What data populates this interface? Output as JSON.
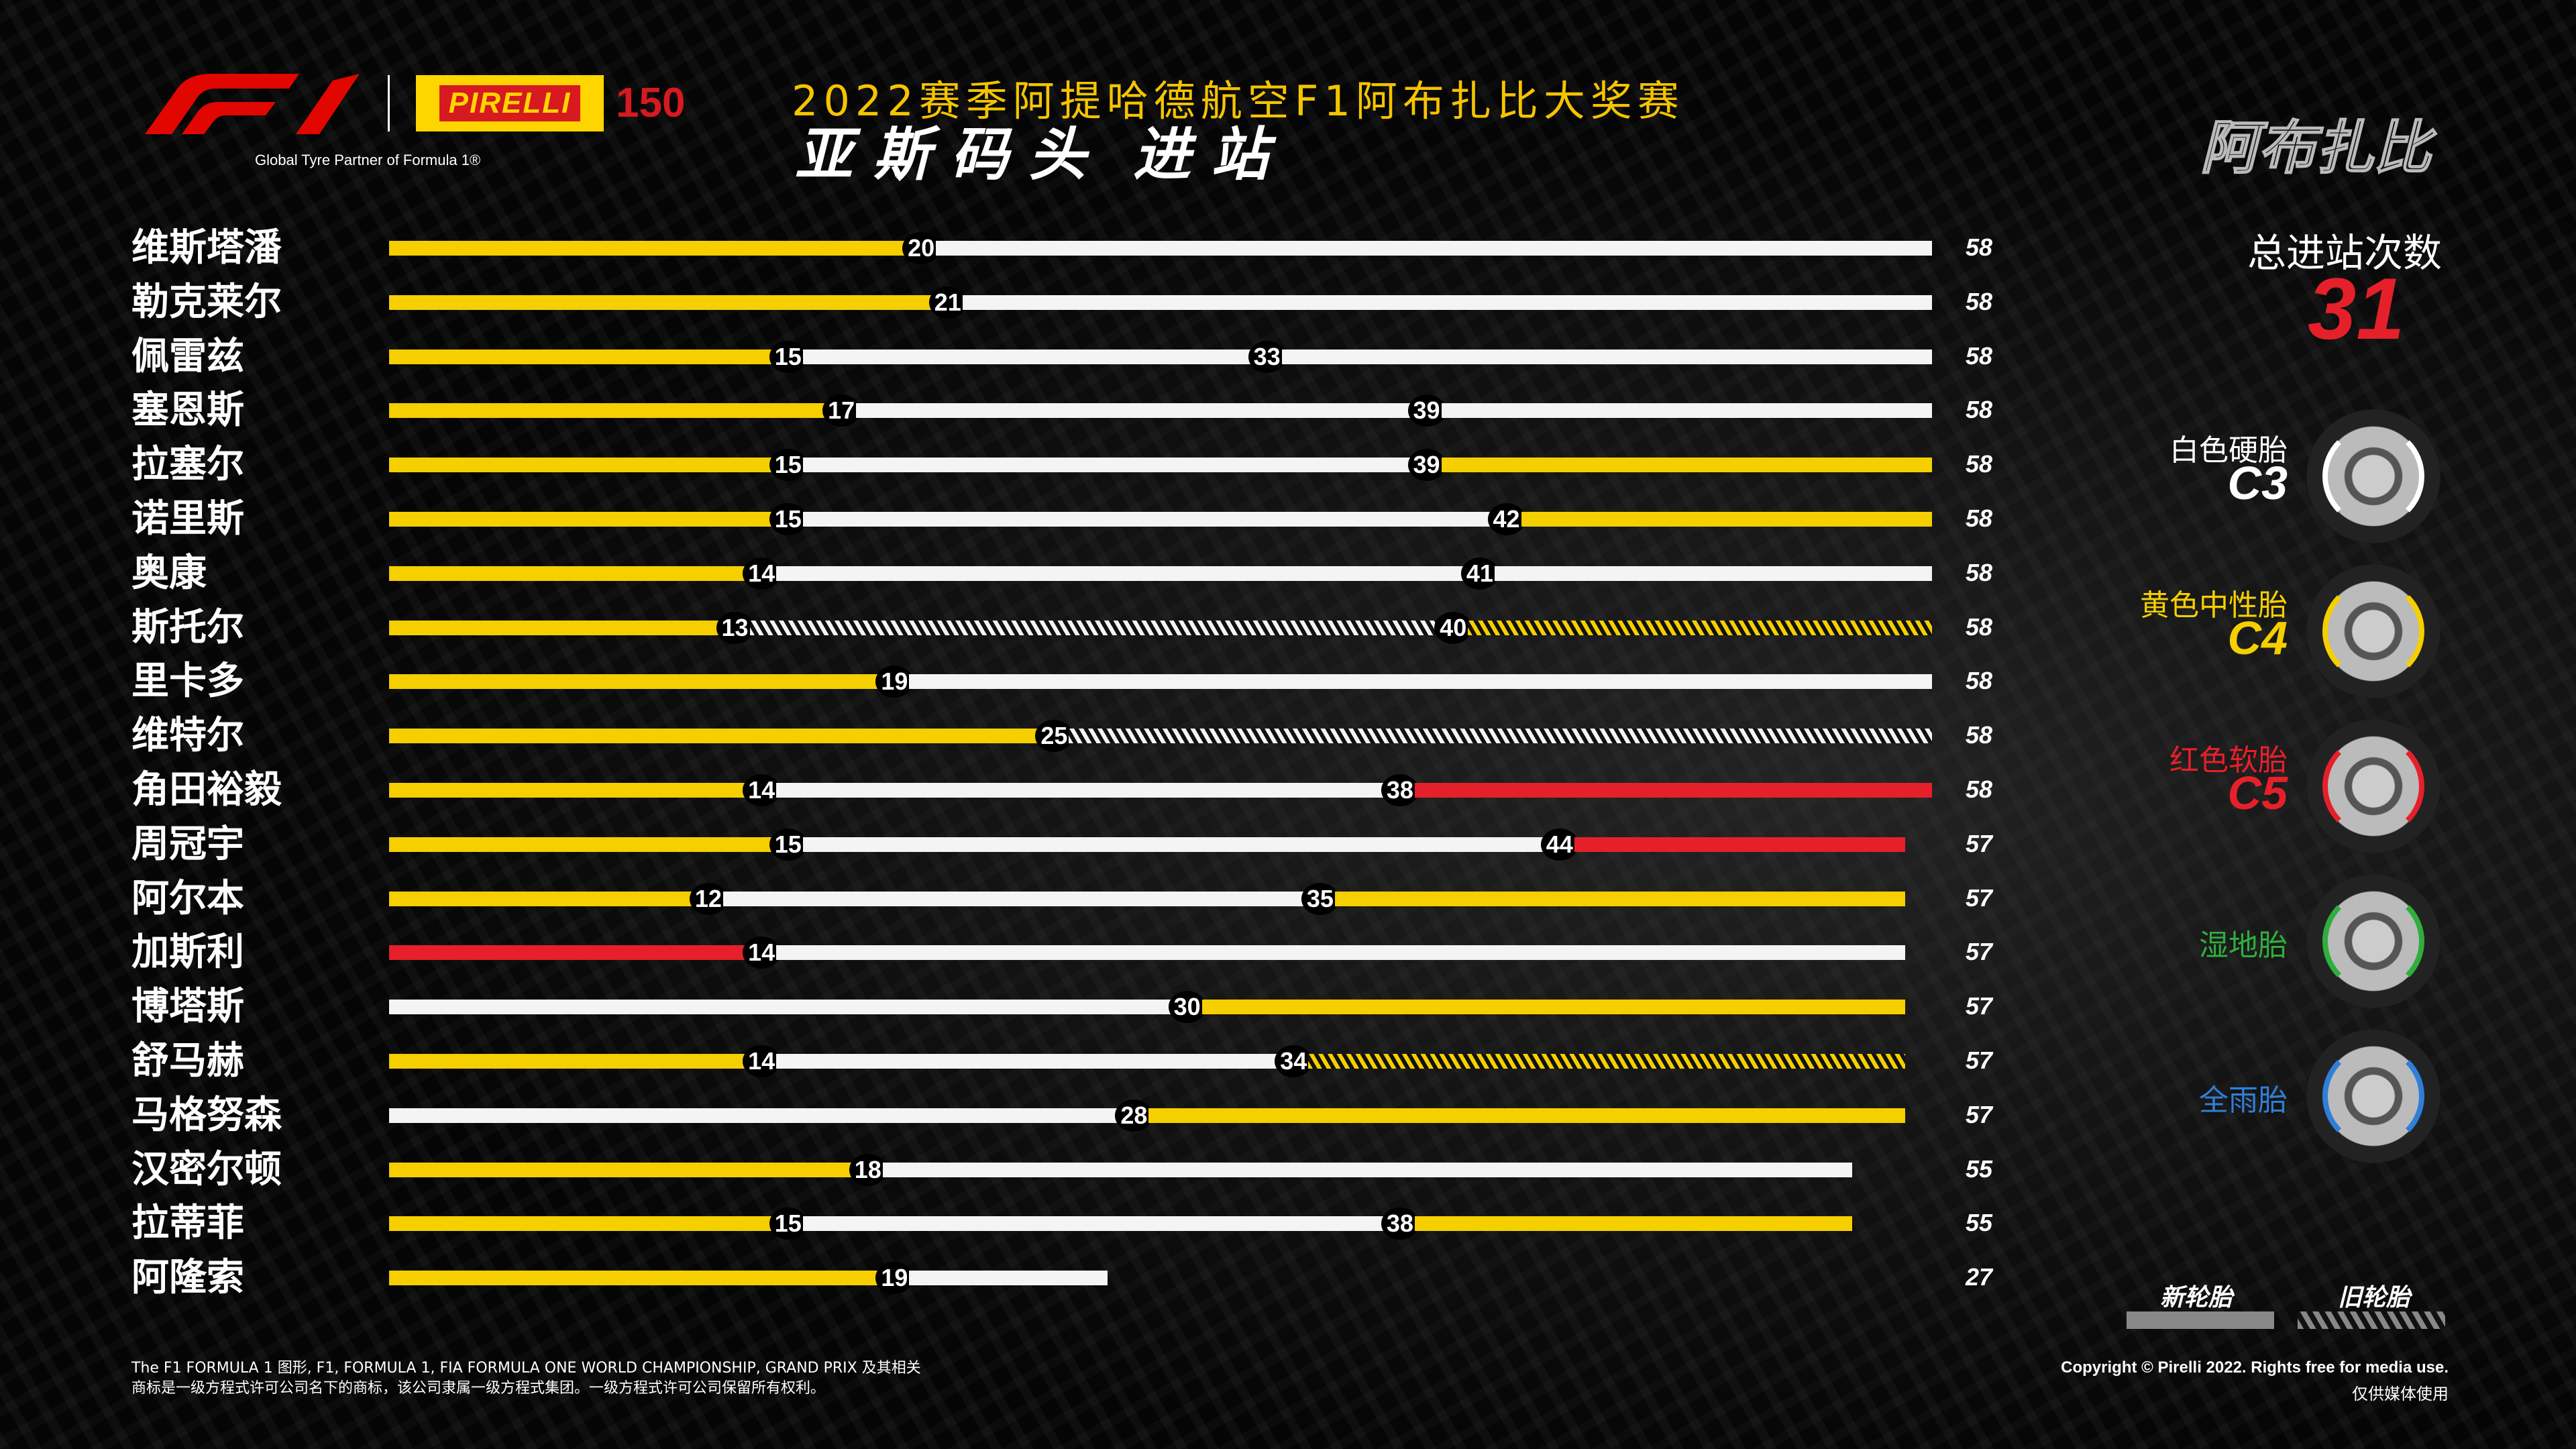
{
  "header": {
    "title_line1": "2022赛季阿提哈德航空F1阿布扎比大奖赛",
    "title_line2a": "亚斯码头",
    "title_line2b": "进站",
    "city": "阿布扎比",
    "partner": "Global Tyre Partner of Formula 1®",
    "pirelli": "PIRELLI",
    "years": "150",
    "f1_logo": "F1"
  },
  "total": {
    "label": "总进站次数",
    "value": "31"
  },
  "tyres": [
    {
      "name": "白色硬胎",
      "code": "C3",
      "color": "#ffffff"
    },
    {
      "name": "黄色中性胎",
      "code": "C4",
      "color": "#f5cf00"
    },
    {
      "name": "红色软胎",
      "code": "C5",
      "color": "#e6202a"
    },
    {
      "name": "湿地胎",
      "code": "",
      "color": "#2fae3d"
    },
    {
      "name": "全雨胎",
      "code": "",
      "color": "#2f7fd6"
    }
  ],
  "legend": {
    "new": "新轮胎",
    "used": "旧轮胎"
  },
  "footer": {
    "left1": "The F1 FORMULA 1 图形, F1, FORMULA 1, FIA FORMULA ONE WORLD CHAMPIONSHIP, GRAND PRIX 及其相关",
    "left2": "商标是一级方程式许可公司名下的商标，该公司隶属一级方程式集团。一级方程式许可公司保留所有权利。",
    "copyright": "Copyright © Pirelli 2022. Rights free for media use.",
    "media": "仅供媒体使用"
  },
  "chart_data": {
    "type": "bar",
    "title": "亚斯码头 进站",
    "xlim": [
      0,
      58
    ],
    "compounds": {
      "Y": "C4 黄色中性胎",
      "W": "C3 白色硬胎",
      "R": "C5 红色软胎"
    },
    "drivers": [
      {
        "name": "维斯塔潘",
        "stints": [
          {
            "c": "Y",
            "end": 20
          },
          {
            "c": "W",
            "end": 58
          }
        ]
      },
      {
        "name": "勒克莱尔",
        "stints": [
          {
            "c": "Y",
            "end": 21
          },
          {
            "c": "W",
            "end": 58
          }
        ]
      },
      {
        "name": "佩雷兹",
        "stints": [
          {
            "c": "Y",
            "end": 15
          },
          {
            "c": "W",
            "end": 33
          },
          {
            "c": "W",
            "end": 58
          }
        ]
      },
      {
        "name": "塞恩斯",
        "stints": [
          {
            "c": "Y",
            "end": 17
          },
          {
            "c": "W",
            "end": 39
          },
          {
            "c": "W",
            "end": 58
          }
        ]
      },
      {
        "name": "拉塞尔",
        "stints": [
          {
            "c": "Y",
            "end": 15
          },
          {
            "c": "W",
            "end": 39
          },
          {
            "c": "Y",
            "end": 58
          }
        ]
      },
      {
        "name": "诺里斯",
        "stints": [
          {
            "c": "Y",
            "end": 15
          },
          {
            "c": "W",
            "end": 42
          },
          {
            "c": "Y",
            "end": 58
          }
        ]
      },
      {
        "name": "奥康",
        "stints": [
          {
            "c": "Y",
            "end": 14
          },
          {
            "c": "W",
            "end": 41
          },
          {
            "c": "W",
            "end": 58
          }
        ]
      },
      {
        "name": "斯托尔",
        "stints": [
          {
            "c": "Y",
            "end": 13
          },
          {
            "c": "W",
            "end": 40,
            "used": true
          },
          {
            "c": "Y",
            "end": 58,
            "used": true
          }
        ]
      },
      {
        "name": "里卡多",
        "stints": [
          {
            "c": "Y",
            "end": 19
          },
          {
            "c": "W",
            "end": 58
          }
        ]
      },
      {
        "name": "维特尔",
        "stints": [
          {
            "c": "Y",
            "end": 25
          },
          {
            "c": "W",
            "end": 58,
            "used": true
          }
        ]
      },
      {
        "name": "角田裕毅",
        "stints": [
          {
            "c": "Y",
            "end": 14
          },
          {
            "c": "W",
            "end": 38
          },
          {
            "c": "R",
            "end": 58
          }
        ]
      },
      {
        "name": "周冠宇",
        "stints": [
          {
            "c": "Y",
            "end": 15
          },
          {
            "c": "W",
            "end": 44
          },
          {
            "c": "R",
            "end": 57
          }
        ]
      },
      {
        "name": "阿尔本",
        "stints": [
          {
            "c": "Y",
            "end": 12
          },
          {
            "c": "W",
            "end": 35
          },
          {
            "c": "Y",
            "end": 57
          }
        ]
      },
      {
        "name": "加斯利",
        "stints": [
          {
            "c": "R",
            "end": 14
          },
          {
            "c": "W",
            "end": 57
          }
        ]
      },
      {
        "name": "博塔斯",
        "stints": [
          {
            "c": "W",
            "end": 30
          },
          {
            "c": "Y",
            "end": 57
          }
        ]
      },
      {
        "name": "舒马赫",
        "stints": [
          {
            "c": "Y",
            "end": 14
          },
          {
            "c": "W",
            "end": 34
          },
          {
            "c": "Y",
            "end": 57,
            "used": true
          }
        ]
      },
      {
        "name": "马格努森",
        "stints": [
          {
            "c": "W",
            "end": 28
          },
          {
            "c": "Y",
            "end": 57
          }
        ]
      },
      {
        "name": "汉密尔顿",
        "stints": [
          {
            "c": "Y",
            "end": 18
          },
          {
            "c": "W",
            "end": 55
          }
        ]
      },
      {
        "name": "拉蒂菲",
        "stints": [
          {
            "c": "Y",
            "end": 15
          },
          {
            "c": "W",
            "end": 38
          },
          {
            "c": "Y",
            "end": 55
          }
        ]
      },
      {
        "name": "阿隆索",
        "stints": [
          {
            "c": "Y",
            "end": 19
          },
          {
            "c": "W",
            "end": 27
          }
        ]
      }
    ]
  }
}
